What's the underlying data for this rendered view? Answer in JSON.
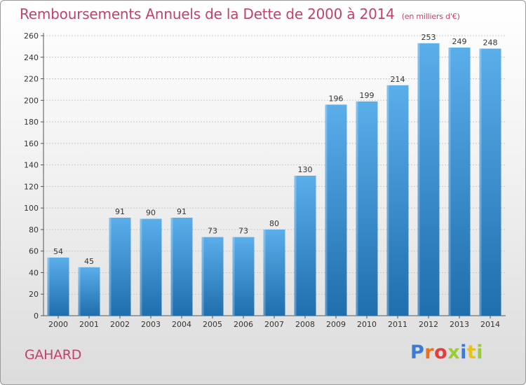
{
  "header": {
    "title": "Remboursements Annuels de la Dette de 2000 à 2014",
    "subtitle": "(en milliers d'€)"
  },
  "footer": {
    "town": "GAHARD",
    "logo_text": "Proxiti",
    "logo_colors": [
      "#3a7bd5",
      "#e8731c",
      "#e83c3c",
      "#9acd32",
      "#3a7bd5",
      "#e8c21c",
      "#9acd32"
    ]
  },
  "colors": {
    "title": "#c2416b",
    "bar_light": "#5aaeea",
    "bar_dark": "#1f6eae",
    "grid": "#c8c8c8"
  },
  "chart_data": {
    "type": "bar",
    "title": "Remboursements Annuels de la Dette de 2000 à 2014",
    "subtitle": "(en milliers d'€)",
    "xlabel": "",
    "ylabel": "",
    "categories": [
      "2000",
      "2001",
      "2002",
      "2003",
      "2004",
      "2005",
      "2006",
      "2007",
      "2008",
      "2009",
      "2010",
      "2011",
      "2012",
      "2013",
      "2014"
    ],
    "values": [
      54,
      45,
      91,
      90,
      91,
      73,
      73,
      80,
      130,
      196,
      199,
      214,
      253,
      249,
      248
    ],
    "ylim": [
      0,
      260
    ],
    "yticks": [
      0,
      20,
      40,
      60,
      80,
      100,
      120,
      140,
      160,
      180,
      200,
      220,
      240,
      260
    ],
    "grid": true,
    "legend": "none"
  }
}
